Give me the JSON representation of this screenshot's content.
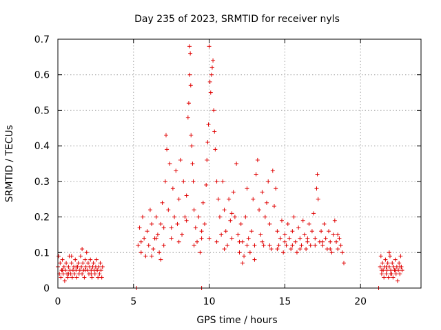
{
  "chart_data": {
    "type": "scatter",
    "title": "Day 235 of 2023, SRMTID for receiver nyls",
    "xlabel": "GPS time / hours",
    "ylabel": "SRMTID / TECUs",
    "xlim": [
      0,
      24
    ],
    "ylim": [
      0,
      0.7
    ],
    "xticks": [
      0,
      5,
      10,
      15,
      20
    ],
    "yticks": [
      0,
      0.1,
      0.2,
      0.3,
      0.4,
      0.5,
      0.6,
      0.7
    ],
    "xtick_labels": [
      "0",
      "5",
      "10",
      "15",
      "20"
    ],
    "ytick_labels": [
      "0",
      "0.1",
      "0.2",
      "0.3",
      "0.4",
      "0.5",
      "0.6",
      "0.7"
    ],
    "grid": true,
    "marker": "+",
    "marker_color": "#e00000",
    "series": [
      {
        "name": "SRMTID",
        "points": [
          [
            0.0,
            0.06
          ],
          [
            0.05,
            0.09
          ],
          [
            0.1,
            0.04
          ],
          [
            0.15,
            0.07
          ],
          [
            0.2,
            0.03
          ],
          [
            0.25,
            0.05
          ],
          [
            0.3,
            0.08
          ],
          [
            0.35,
            0.04
          ],
          [
            0.4,
            0.06
          ],
          [
            0.45,
            0.02
          ],
          [
            0.5,
            0.05
          ],
          [
            0.55,
            0.07
          ],
          [
            0.6,
            0.04
          ],
          [
            0.65,
            0.03
          ],
          [
            0.7,
            0.06
          ],
          [
            0.75,
            0.09
          ],
          [
            0.8,
            0.05
          ],
          [
            0.85,
            0.04
          ],
          [
            0.9,
            0.07
          ],
          [
            0.95,
            0.03
          ],
          [
            1.0,
            0.05
          ],
          [
            1.05,
            0.06
          ],
          [
            1.1,
            0.04
          ],
          [
            1.15,
            0.08
          ],
          [
            1.2,
            0.05
          ],
          [
            1.25,
            0.03
          ],
          [
            1.3,
            0.06
          ],
          [
            1.35,
            0.07
          ],
          [
            1.4,
            0.04
          ],
          [
            1.45,
            0.05
          ],
          [
            1.5,
            0.09
          ],
          [
            1.55,
            0.06
          ],
          [
            1.6,
            0.04
          ],
          [
            1.65,
            0.07
          ],
          [
            1.7,
            0.05
          ],
          [
            1.75,
            0.03
          ],
          [
            1.8,
            0.08
          ],
          [
            1.85,
            0.06
          ],
          [
            1.9,
            0.1
          ],
          [
            1.95,
            0.05
          ],
          [
            2.0,
            0.07
          ],
          [
            2.05,
            0.04
          ],
          [
            2.1,
            0.06
          ],
          [
            2.15,
            0.08
          ],
          [
            2.2,
            0.05
          ],
          [
            2.25,
            0.03
          ],
          [
            2.3,
            0.06
          ],
          [
            2.35,
            0.07
          ],
          [
            2.4,
            0.05
          ],
          [
            2.45,
            0.04
          ],
          [
            2.5,
            0.06
          ],
          [
            2.55,
            0.08
          ],
          [
            2.6,
            0.05
          ],
          [
            2.65,
            0.03
          ],
          [
            2.7,
            0.06
          ],
          [
            2.75,
            0.04
          ],
          [
            2.8,
            0.07
          ],
          [
            2.85,
            0.05
          ],
          [
            2.9,
            0.03
          ],
          [
            2.95,
            0.06
          ],
          [
            0.3,
            0.05
          ],
          [
            0.7,
            0.04
          ],
          [
            1.2,
            0.06
          ],
          [
            1.8,
            0.05
          ],
          [
            2.2,
            0.04
          ],
          [
            2.6,
            0.05
          ],
          [
            1.6,
            0.11
          ],
          [
            0.9,
            0.09
          ],
          [
            5.2,
            0.0
          ],
          [
            9.5,
            0.0
          ],
          [
            21.2,
            0.0
          ],
          [
            5.3,
            0.12
          ],
          [
            5.4,
            0.17
          ],
          [
            5.5,
            0.1
          ],
          [
            5.6,
            0.2
          ],
          [
            5.7,
            0.14
          ],
          [
            5.8,
            0.09
          ],
          [
            5.9,
            0.16
          ],
          [
            6.0,
            0.12
          ],
          [
            6.1,
            0.22
          ],
          [
            6.2,
            0.18
          ],
          [
            6.3,
            0.11
          ],
          [
            6.4,
            0.14
          ],
          [
            6.5,
            0.2
          ],
          [
            6.6,
            0.15
          ],
          [
            6.7,
            0.1
          ],
          [
            6.8,
            0.18
          ],
          [
            6.9,
            0.24
          ],
          [
            7.0,
            0.17
          ],
          [
            7.1,
            0.3
          ],
          [
            7.15,
            0.43
          ],
          [
            7.2,
            0.39
          ],
          [
            7.3,
            0.22
          ],
          [
            7.4,
            0.35
          ],
          [
            7.5,
            0.14
          ],
          [
            7.6,
            0.28
          ],
          [
            7.7,
            0.2
          ],
          [
            7.8,
            0.33
          ],
          [
            7.9,
            0.18
          ],
          [
            8.0,
            0.25
          ],
          [
            8.1,
            0.36
          ],
          [
            8.2,
            0.15
          ],
          [
            8.3,
            0.3
          ],
          [
            8.4,
            0.2
          ],
          [
            8.5,
            0.26
          ],
          [
            8.6,
            0.48
          ],
          [
            8.65,
            0.52
          ],
          [
            8.7,
            0.68
          ],
          [
            8.72,
            0.6
          ],
          [
            8.75,
            0.66
          ],
          [
            8.78,
            0.57
          ],
          [
            8.8,
            0.43
          ],
          [
            8.85,
            0.4
          ],
          [
            8.9,
            0.35
          ],
          [
            8.95,
            0.3
          ],
          [
            9.0,
            0.22
          ],
          [
            9.1,
            0.17
          ],
          [
            9.2,
            0.13
          ],
          [
            9.3,
            0.2
          ],
          [
            9.4,
            0.1
          ],
          [
            9.5,
            0.14
          ],
          [
            9.6,
            0.24
          ],
          [
            9.7,
            0.18
          ],
          [
            9.8,
            0.29
          ],
          [
            9.85,
            0.36
          ],
          [
            9.9,
            0.41
          ],
          [
            9.95,
            0.46
          ],
          [
            10.0,
            0.68
          ],
          [
            10.05,
            0.58
          ],
          [
            10.1,
            0.55
          ],
          [
            10.15,
            0.6
          ],
          [
            10.2,
            0.62
          ],
          [
            10.25,
            0.64
          ],
          [
            10.3,
            0.5
          ],
          [
            10.35,
            0.44
          ],
          [
            10.4,
            0.39
          ],
          [
            10.5,
            0.3
          ],
          [
            10.6,
            0.25
          ],
          [
            10.7,
            0.2
          ],
          [
            10.8,
            0.15
          ],
          [
            10.9,
            0.3
          ],
          [
            11.0,
            0.22
          ],
          [
            11.1,
            0.16
          ],
          [
            11.2,
            0.12
          ],
          [
            11.3,
            0.25
          ],
          [
            11.4,
            0.19
          ],
          [
            11.5,
            0.14
          ],
          [
            11.6,
            0.27
          ],
          [
            11.7,
            0.2
          ],
          [
            11.8,
            0.35
          ],
          [
            11.9,
            0.15
          ],
          [
            12.0,
            0.1
          ],
          [
            12.1,
            0.18
          ],
          [
            12.2,
            0.13
          ],
          [
            12.3,
            0.09
          ],
          [
            12.4,
            0.2
          ],
          [
            12.5,
            0.28
          ],
          [
            12.6,
            0.14
          ],
          [
            12.7,
            0.1
          ],
          [
            12.8,
            0.16
          ],
          [
            12.9,
            0.25
          ],
          [
            13.0,
            0.12
          ],
          [
            13.1,
            0.32
          ],
          [
            13.2,
            0.36
          ],
          [
            13.3,
            0.22
          ],
          [
            13.4,
            0.15
          ],
          [
            13.5,
            0.27
          ],
          [
            13.6,
            0.12
          ],
          [
            13.7,
            0.2
          ],
          [
            13.8,
            0.24
          ],
          [
            13.9,
            0.3
          ],
          [
            14.0,
            0.18
          ],
          [
            14.1,
            0.11
          ],
          [
            14.2,
            0.33
          ],
          [
            14.3,
            0.23
          ],
          [
            14.4,
            0.28
          ],
          [
            14.5,
            0.16
          ],
          [
            14.6,
            0.12
          ],
          [
            14.7,
            0.14
          ],
          [
            14.8,
            0.19
          ],
          [
            14.9,
            0.1
          ],
          [
            15.0,
            0.15
          ],
          [
            15.1,
            0.12
          ],
          [
            15.2,
            0.18
          ],
          [
            15.3,
            0.14
          ],
          [
            15.4,
            0.11
          ],
          [
            15.5,
            0.16
          ],
          [
            15.6,
            0.2
          ],
          [
            15.7,
            0.13
          ],
          [
            15.8,
            0.1
          ],
          [
            15.9,
            0.17
          ],
          [
            16.0,
            0.14
          ],
          [
            16.1,
            0.12
          ],
          [
            16.2,
            0.19
          ],
          [
            16.3,
            0.15
          ],
          [
            16.4,
            0.11
          ],
          [
            16.5,
            0.13
          ],
          [
            16.6,
            0.18
          ],
          [
            16.7,
            0.12
          ],
          [
            16.8,
            0.16
          ],
          [
            16.9,
            0.21
          ],
          [
            17.0,
            0.14
          ],
          [
            17.1,
            0.28
          ],
          [
            17.15,
            0.32
          ],
          [
            17.2,
            0.25
          ],
          [
            17.3,
            0.13
          ],
          [
            17.4,
            0.16
          ],
          [
            17.5,
            0.12
          ],
          [
            17.6,
            0.18
          ],
          [
            17.7,
            0.14
          ],
          [
            17.8,
            0.11
          ],
          [
            17.9,
            0.16
          ],
          [
            18.0,
            0.13
          ],
          [
            18.1,
            0.1
          ],
          [
            18.2,
            0.15
          ],
          [
            18.3,
            0.19
          ],
          [
            18.4,
            0.13
          ],
          [
            18.5,
            0.11
          ],
          [
            18.6,
            0.14
          ],
          [
            18.7,
            0.12
          ],
          [
            18.8,
            0.1
          ],
          [
            5.5,
            0.13
          ],
          [
            6.2,
            0.09
          ],
          [
            7.0,
            0.12
          ],
          [
            8.0,
            0.13
          ],
          [
            9.0,
            0.12
          ],
          [
            10.0,
            0.14
          ],
          [
            11.0,
            0.11
          ],
          [
            12.0,
            0.13
          ],
          [
            13.0,
            0.08
          ],
          [
            14.0,
            0.12
          ],
          [
            15.0,
            0.13
          ],
          [
            16.0,
            0.11
          ],
          [
            17.0,
            0.12
          ],
          [
            18.0,
            0.11
          ],
          [
            6.5,
            0.14
          ],
          [
            7.5,
            0.17
          ],
          [
            8.5,
            0.19
          ],
          [
            9.5,
            0.16
          ],
          [
            10.5,
            0.13
          ],
          [
            11.5,
            0.21
          ],
          [
            12.5,
            0.12
          ],
          [
            13.5,
            0.13
          ],
          [
            14.5,
            0.11
          ],
          [
            15.5,
            0.12
          ],
          [
            16.5,
            0.14
          ],
          [
            17.5,
            0.13
          ],
          [
            18.5,
            0.15
          ],
          [
            6.8,
            0.08
          ],
          [
            12.2,
            0.07
          ],
          [
            18.9,
            0.07
          ],
          [
            21.3,
            0.06
          ],
          [
            21.35,
            0.09
          ],
          [
            21.4,
            0.04
          ],
          [
            21.45,
            0.07
          ],
          [
            21.5,
            0.05
          ],
          [
            21.55,
            0.03
          ],
          [
            21.6,
            0.06
          ],
          [
            21.65,
            0.08
          ],
          [
            21.7,
            0.04
          ],
          [
            21.75,
            0.05
          ],
          [
            21.8,
            0.07
          ],
          [
            21.85,
            0.03
          ],
          [
            21.9,
            0.06
          ],
          [
            21.95,
            0.09
          ],
          [
            22.0,
            0.05
          ],
          [
            22.05,
            0.04
          ],
          [
            22.1,
            0.07
          ],
          [
            22.15,
            0.03
          ],
          [
            22.2,
            0.06
          ],
          [
            22.25,
            0.05
          ],
          [
            22.3,
            0.08
          ],
          [
            22.35,
            0.04
          ],
          [
            22.4,
            0.06
          ],
          [
            22.45,
            0.02
          ],
          [
            22.5,
            0.05
          ],
          [
            22.55,
            0.07
          ],
          [
            22.6,
            0.04
          ],
          [
            22.65,
            0.09
          ],
          [
            22.7,
            0.06
          ],
          [
            22.75,
            0.05
          ],
          [
            21.4,
            0.05
          ],
          [
            21.7,
            0.06
          ],
          [
            22.0,
            0.04
          ],
          [
            22.3,
            0.05
          ],
          [
            22.6,
            0.06
          ],
          [
            21.9,
            0.1
          ]
        ]
      }
    ]
  }
}
